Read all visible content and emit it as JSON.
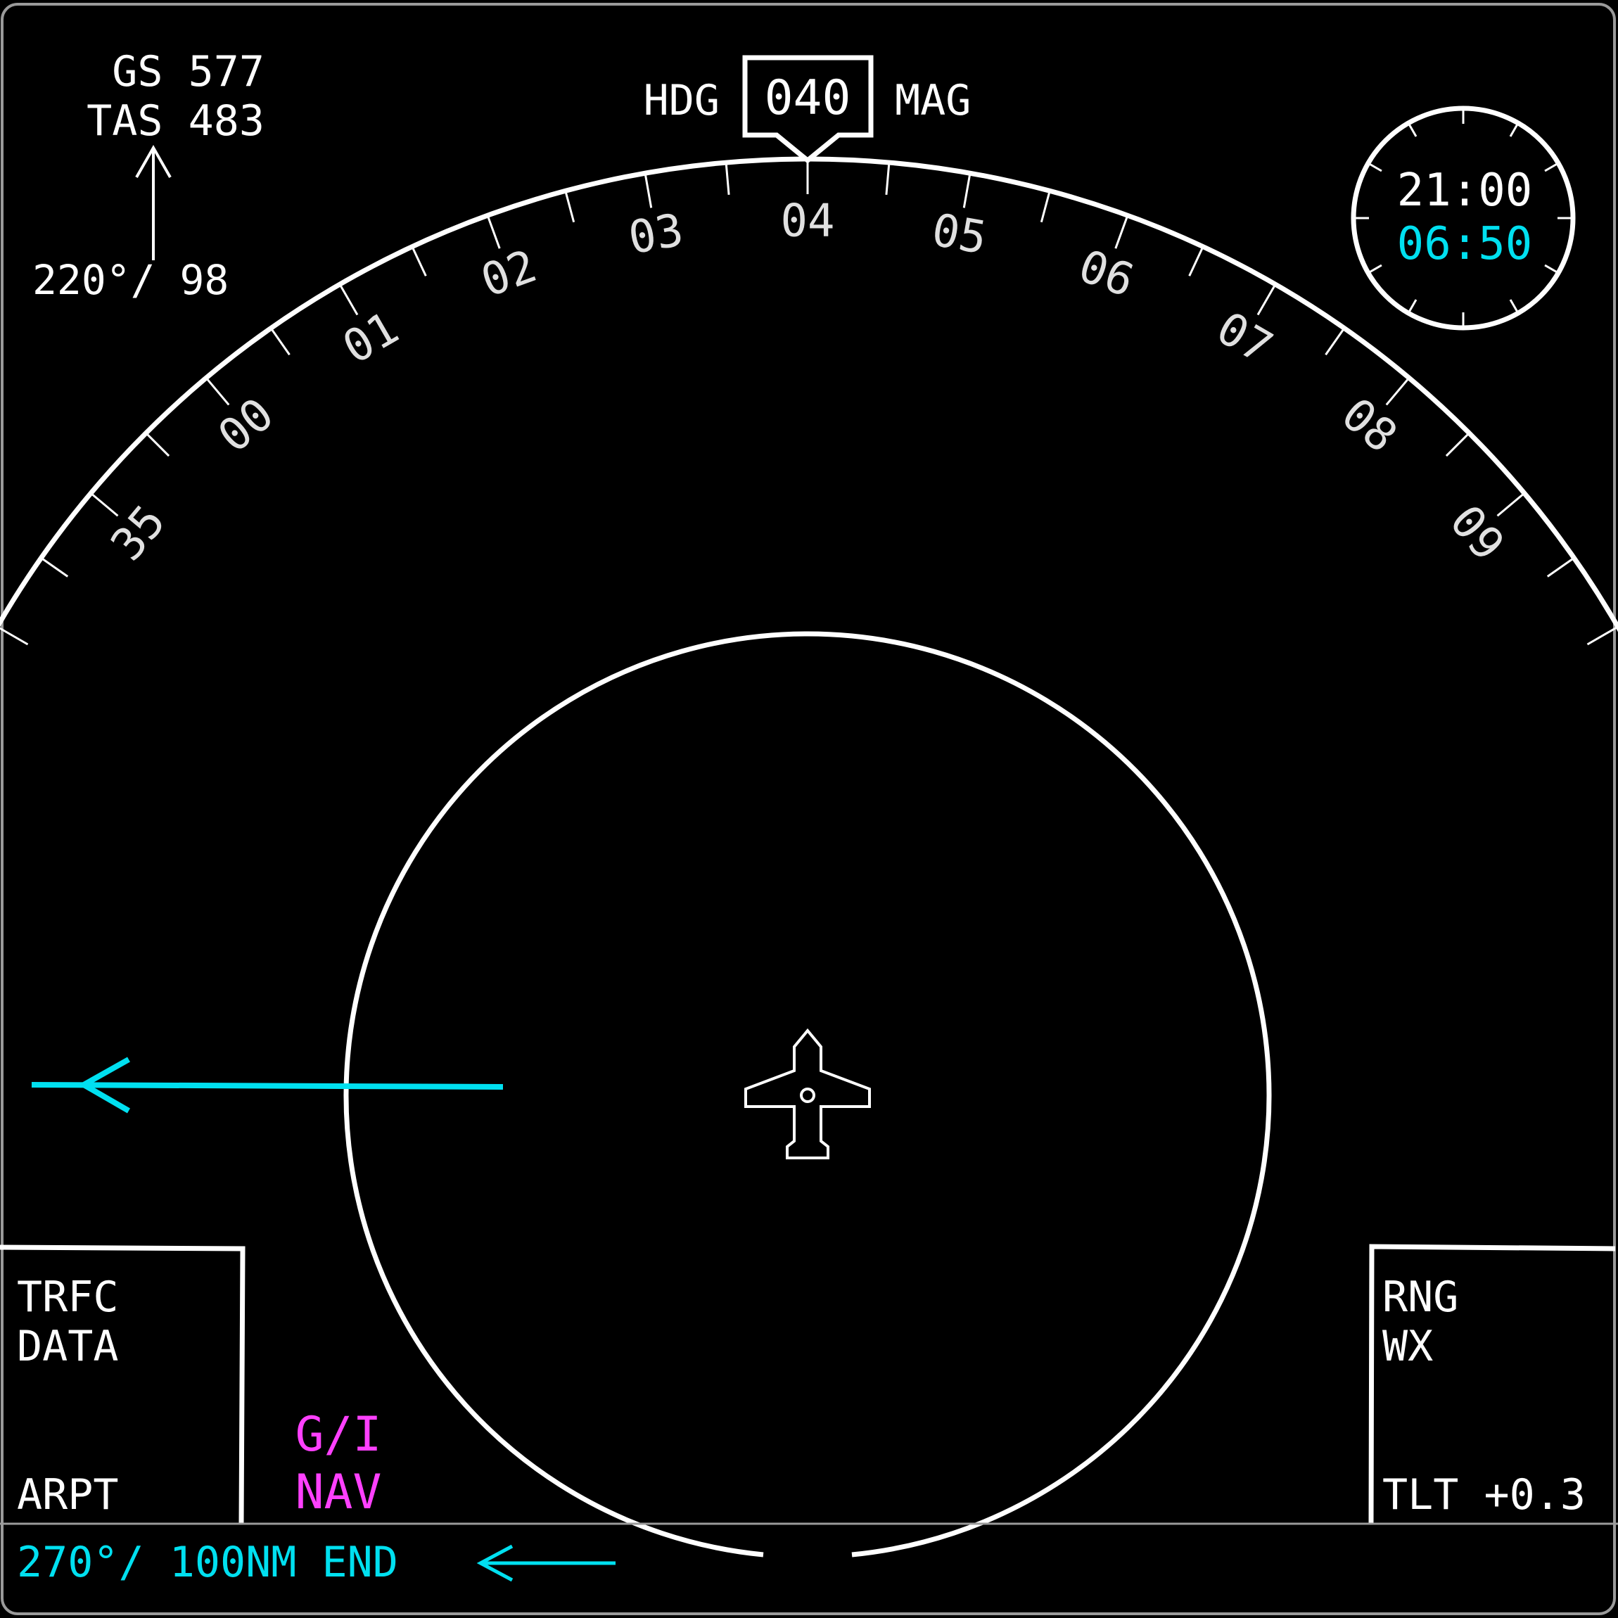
{
  "colors": {
    "background": "#000000",
    "white": "#ffffff",
    "scale_text": "#e0e0e0",
    "cyan": "#00e0f0",
    "magenta": "#ff40ff",
    "frame": "#9a9a9a"
  },
  "speed": {
    "gs": "GS 577",
    "tas": "TAS 483"
  },
  "wind": {
    "text": "220°/ 98",
    "arrow_icon": "wind-arrow-icon"
  },
  "heading": {
    "label": "HDG",
    "value": "040",
    "reference": "MAG"
  },
  "compass": {
    "labels": [
      "35",
      "00",
      "01",
      "02",
      "03",
      "04",
      "05",
      "06",
      "07",
      "08",
      "09"
    ],
    "label_headings_deg": [
      350,
      0,
      10,
      20,
      30,
      40,
      50,
      60,
      70,
      80,
      90
    ]
  },
  "clock": {
    "time": "21:00",
    "elapsed": "06:50"
  },
  "aircraft_icon": "ownship-aircraft-icon",
  "left_panel": {
    "line1": "TRFC",
    "line2": "DATA",
    "bottom": "ARPT"
  },
  "right_panel": {
    "line1": "RNG",
    "line2": "WX",
    "bottom": "TLT +0.3"
  },
  "mode": {
    "line1": "G/I",
    "line2": "NAV"
  },
  "status": {
    "text": "270°/ 100NM END",
    "arrow_icon": "left-arrow-icon"
  }
}
